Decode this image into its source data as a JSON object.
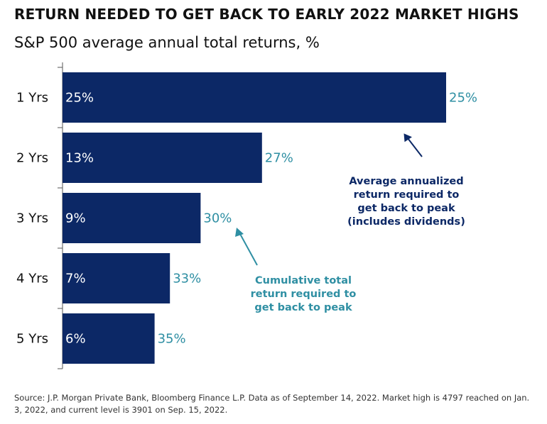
{
  "header": {
    "title": "RETURN NEEDED TO GET BACK TO EARLY 2022 MARKET HIGHS",
    "subtitle": "S&P 500 average annual total returns, %"
  },
  "colors": {
    "bar": "#0c2866",
    "annualized_label": "#ffffff",
    "cumulative_label": "#2f8fa3",
    "annualized_annotation": "#0c2866",
    "cumulative_annotation": "#2f8fa3",
    "axis": "#555555"
  },
  "chart_data": {
    "type": "bar",
    "orientation": "horizontal",
    "categories": [
      "1 Yrs",
      "2 Yrs",
      "3 Yrs",
      "4 Yrs",
      "5 Yrs"
    ],
    "series": [
      {
        "name": "Average annualized return required to get back to peak (includes dividends)",
        "values": [
          25,
          13,
          9,
          7,
          6
        ],
        "labels": [
          "25%",
          "13%",
          "9%",
          "7%",
          "6%"
        ]
      },
      {
        "name": "Cumulative total return required to get back to peak",
        "values": [
          25,
          27,
          30,
          33,
          35
        ],
        "labels": [
          "25%",
          "27%",
          "30%",
          "33%",
          "35%"
        ]
      }
    ],
    "annotations": {
      "annualized": [
        "Average annualized",
        "return required to",
        "get back to peak",
        "(includes dividends)"
      ],
      "cumulative": [
        "Cumulative total",
        "return required to",
        "get back to peak"
      ]
    }
  },
  "footer": {
    "source": "Source: J.P. Morgan Private Bank, Bloomberg Finance L.P. Data as of September 14, 2022. Market high is 4797 reached on Jan. 3, 2022, and current level is 3901 on Sep. 15, 2022."
  }
}
